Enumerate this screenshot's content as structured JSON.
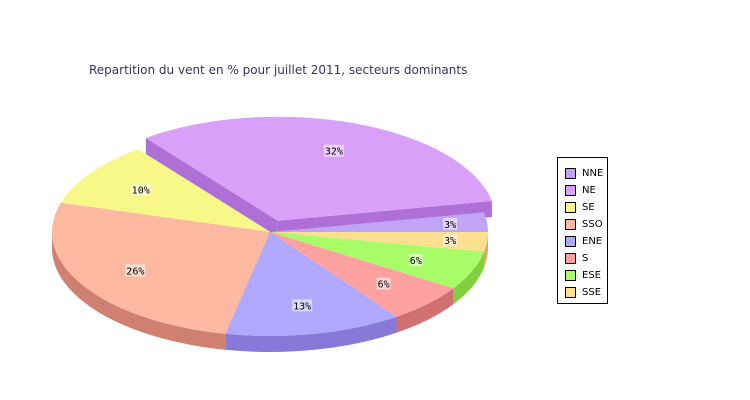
{
  "chart_data": {
    "type": "pie",
    "title": "Repartition du vent en % pour juillet 2011, secteurs dominants",
    "labels": [
      "NNE",
      "NE",
      "SE",
      "SSO",
      "ENE",
      "S",
      "ESE",
      "SSE"
    ],
    "values": [
      3,
      32,
      10,
      26,
      13,
      6,
      6,
      3
    ],
    "value_labels": [
      "3%",
      "32%",
      "10%",
      "26%",
      "13%",
      "6%",
      "6%",
      "3%"
    ],
    "colors": [
      "#c0a4f8",
      "#d8a0f8",
      "#f8f888",
      "#fcb8a0",
      "#b0a8fc",
      "#fca0a0",
      "#a8fc68",
      "#fce090"
    ],
    "side_colors": [
      "#9a70d8",
      "#ae70d6",
      "#d0d050",
      "#d08070",
      "#8878d8",
      "#d07070",
      "#80d040",
      "#d0b060"
    ],
    "exploded": "NE",
    "legend_position": "right"
  }
}
